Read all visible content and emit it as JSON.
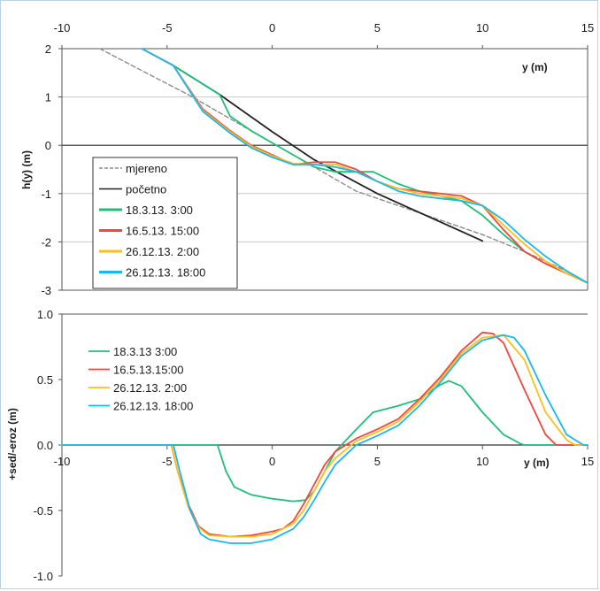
{
  "colors": {
    "mjereno": "#8c8c8c",
    "pocetno": "#222222",
    "s1": "#1fbf7a",
    "s2": "#f2473f",
    "s3": "#ffbf1a",
    "s4": "#1ab8f0"
  },
  "chart_data": [
    {
      "type": "line",
      "ylabel": "h(y)  (m)",
      "xlabel": "y (m)",
      "xlim": [
        -10,
        15
      ],
      "ylim": [
        -3,
        2
      ],
      "x_ticks": [
        "-10",
        "-5",
        "0",
        "5",
        "10",
        "15"
      ],
      "y_ticks": [
        "2",
        "1",
        "0",
        "-1",
        "-2",
        "-3"
      ],
      "legend_position": "bottom-left",
      "series": [
        {
          "name": "mjereno",
          "style": "dashed",
          "color": "#8c8c8c",
          "points": [
            [
              -8.2,
              2.0
            ],
            [
              -6,
              1.5
            ],
            [
              -4,
              1.05
            ],
            [
              -2,
              0.55
            ],
            [
              0,
              0.05
            ],
            [
              2,
              -0.45
            ],
            [
              4,
              -0.95
            ],
            [
              6,
              -1.25
            ],
            [
              8,
              -1.55
            ],
            [
              10,
              -1.85
            ],
            [
              12,
              -2.2
            ],
            [
              14,
              -2.6
            ],
            [
              15,
              -2.85
            ]
          ]
        },
        {
          "name": "početno",
          "style": "solid",
          "color": "#222222",
          "points": [
            [
              -6.2,
              2.0
            ],
            [
              -4.7,
              1.65
            ],
            [
              -2.5,
              1.05
            ],
            [
              0,
              0.28
            ],
            [
              2,
              -0.3
            ],
            [
              5,
              -1.0
            ],
            [
              10,
              -1.98
            ]
          ]
        },
        {
          "name": "18.3.13. 3:00",
          "style": "solid",
          "color": "#1fbf7a",
          "points": [
            [
              -6.2,
              2.0
            ],
            [
              -4.7,
              1.65
            ],
            [
              -2.5,
              1.05
            ],
            [
              -2,
              0.6
            ],
            [
              -1,
              0.3
            ],
            [
              0,
              0.05
            ],
            [
              1,
              -0.2
            ],
            [
              2,
              -0.45
            ],
            [
              3,
              -0.55
            ],
            [
              4,
              -0.55
            ],
            [
              4.8,
              -0.55
            ],
            [
              6,
              -0.8
            ],
            [
              7,
              -0.95
            ],
            [
              8,
              -1.05
            ],
            [
              9,
              -1.15
            ],
            [
              10,
              -1.45
            ],
            [
              11,
              -1.85
            ],
            [
              12,
              -2.2
            ],
            [
              13,
              -2.45
            ],
            [
              14,
              -2.65
            ],
            [
              15,
              -2.85
            ]
          ]
        },
        {
          "name": "16.5.13. 15:00",
          "style": "solid",
          "color": "#f2473f",
          "points": [
            [
              -6.2,
              2.0
            ],
            [
              -4.7,
              1.65
            ],
            [
              -3.3,
              0.75
            ],
            [
              -2,
              0.3
            ],
            [
              -1,
              0.0
            ],
            [
              0,
              -0.2
            ],
            [
              1,
              -0.4
            ],
            [
              2,
              -0.35
            ],
            [
              3,
              -0.35
            ],
            [
              4,
              -0.5
            ],
            [
              5,
              -0.75
            ],
            [
              6,
              -0.9
            ],
            [
              7,
              -0.95
            ],
            [
              8,
              -1.0
            ],
            [
              9,
              -1.05
            ],
            [
              10,
              -1.25
            ],
            [
              11,
              -1.75
            ],
            [
              12,
              -2.2
            ],
            [
              13,
              -2.45
            ],
            [
              14,
              -2.65
            ],
            [
              15,
              -2.85
            ]
          ]
        },
        {
          "name": "26.12.13. 2:00",
          "style": "solid",
          "color": "#ffbf1a",
          "points": [
            [
              -6.2,
              2.0
            ],
            [
              -4.7,
              1.65
            ],
            [
              -3.3,
              0.72
            ],
            [
              -2,
              0.28
            ],
            [
              -1,
              -0.02
            ],
            [
              0,
              -0.22
            ],
            [
              1,
              -0.38
            ],
            [
              2,
              -0.4
            ],
            [
              3,
              -0.4
            ],
            [
              4,
              -0.55
            ],
            [
              5,
              -0.75
            ],
            [
              6,
              -0.9
            ],
            [
              7,
              -1.0
            ],
            [
              8,
              -1.05
            ],
            [
              9,
              -1.1
            ],
            [
              10,
              -1.25
            ],
            [
              11,
              -1.65
            ],
            [
              12,
              -2.05
            ],
            [
              13,
              -2.4
            ],
            [
              14,
              -2.65
            ],
            [
              15,
              -2.85
            ]
          ]
        },
        {
          "name": "26.12.13. 18:00",
          "style": "solid",
          "color": "#1ab8f0",
          "points": [
            [
              -6.2,
              2.0
            ],
            [
              -4.7,
              1.65
            ],
            [
              -3.3,
              0.7
            ],
            [
              -2,
              0.25
            ],
            [
              -1,
              -0.05
            ],
            [
              0,
              -0.25
            ],
            [
              1,
              -0.4
            ],
            [
              2,
              -0.4
            ],
            [
              3,
              -0.45
            ],
            [
              4,
              -0.55
            ],
            [
              5,
              -0.75
            ],
            [
              6,
              -0.95
            ],
            [
              7,
              -1.05
            ],
            [
              8,
              -1.1
            ],
            [
              9,
              -1.15
            ],
            [
              10,
              -1.25
            ],
            [
              11,
              -1.55
            ],
            [
              12,
              -1.95
            ],
            [
              13,
              -2.3
            ],
            [
              14,
              -2.6
            ],
            [
              15,
              -2.85
            ]
          ]
        }
      ]
    },
    {
      "type": "line",
      "ylabel": "+sed/-eroz (m)",
      "xlabel": "y (m)",
      "xlim": [
        -10,
        15
      ],
      "ylim": [
        -1.0,
        1.0
      ],
      "x_ticks": [
        "-10",
        "-5",
        "0",
        "5",
        "10",
        "15"
      ],
      "y_ticks": [
        "1.0",
        "0.5",
        "0.0",
        "-0.5",
        "-1.0"
      ],
      "legend_position": "top-left",
      "series": [
        {
          "name": "18.3.13 3:00",
          "color": "#1fbf7a",
          "points": [
            [
              -10,
              0
            ],
            [
              -2.6,
              0
            ],
            [
              -2.2,
              -0.2
            ],
            [
              -1.8,
              -0.32
            ],
            [
              -1,
              -0.38
            ],
            [
              0,
              -0.41
            ],
            [
              1,
              -0.43
            ],
            [
              1.6,
              -0.42
            ],
            [
              2,
              -0.35
            ],
            [
              2.5,
              -0.2
            ],
            [
              3,
              -0.05
            ],
            [
              4,
              0.12
            ],
            [
              4.8,
              0.25
            ],
            [
              6,
              0.3
            ],
            [
              7,
              0.35
            ],
            [
              8,
              0.46
            ],
            [
              8.4,
              0.49
            ],
            [
              9,
              0.45
            ],
            [
              10,
              0.25
            ],
            [
              11,
              0.08
            ],
            [
              11.8,
              0.01
            ],
            [
              12,
              0
            ],
            [
              15,
              0
            ]
          ]
        },
        {
          "name": "16.5.13.15:00",
          "color": "#f2473f",
          "points": [
            [
              -10,
              0
            ],
            [
              -4.8,
              0
            ],
            [
              -4.5,
              -0.2
            ],
            [
              -4,
              -0.45
            ],
            [
              -3.5,
              -0.62
            ],
            [
              -3,
              -0.68
            ],
            [
              -2,
              -0.7
            ],
            [
              -1,
              -0.69
            ],
            [
              0,
              -0.66
            ],
            [
              0.5,
              -0.64
            ],
            [
              1,
              -0.58
            ],
            [
              1.5,
              -0.45
            ],
            [
              2,
              -0.3
            ],
            [
              2.5,
              -0.15
            ],
            [
              3,
              -0.05
            ],
            [
              4,
              0.05
            ],
            [
              5,
              0.12
            ],
            [
              6,
              0.2
            ],
            [
              7,
              0.35
            ],
            [
              8,
              0.52
            ],
            [
              9,
              0.72
            ],
            [
              10,
              0.86
            ],
            [
              10.5,
              0.85
            ],
            [
              11,
              0.78
            ],
            [
              12,
              0.42
            ],
            [
              13,
              0.08
            ],
            [
              13.5,
              0
            ],
            [
              15,
              0
            ]
          ]
        },
        {
          "name": "26.12.13. 2:00",
          "color": "#ffbf1a",
          "points": [
            [
              -10,
              0
            ],
            [
              -4.8,
              0
            ],
            [
              -4.5,
              -0.2
            ],
            [
              -4,
              -0.47
            ],
            [
              -3.5,
              -0.63
            ],
            [
              -3,
              -0.69
            ],
            [
              -2,
              -0.7
            ],
            [
              -1,
              -0.7
            ],
            [
              0,
              -0.68
            ],
            [
              1,
              -0.6
            ],
            [
              1.5,
              -0.5
            ],
            [
              2,
              -0.35
            ],
            [
              2.5,
              -0.2
            ],
            [
              3,
              -0.1
            ],
            [
              4,
              0.03
            ],
            [
              5,
              0.1
            ],
            [
              6,
              0.18
            ],
            [
              7,
              0.33
            ],
            [
              8,
              0.5
            ],
            [
              9,
              0.7
            ],
            [
              10,
              0.82
            ],
            [
              11,
              0.84
            ],
            [
              12,
              0.65
            ],
            [
              13,
              0.25
            ],
            [
              14,
              0.04
            ],
            [
              14.4,
              0
            ],
            [
              15,
              0
            ]
          ]
        },
        {
          "name": "26.12.13. 18:00",
          "color": "#1ab8f0",
          "points": [
            [
              -10,
              0
            ],
            [
              -4.7,
              0
            ],
            [
              -4.4,
              -0.2
            ],
            [
              -3.9,
              -0.5
            ],
            [
              -3.4,
              -0.68
            ],
            [
              -3,
              -0.72
            ],
            [
              -2,
              -0.75
            ],
            [
              -1,
              -0.75
            ],
            [
              0,
              -0.72
            ],
            [
              1,
              -0.64
            ],
            [
              1.5,
              -0.55
            ],
            [
              2,
              -0.42
            ],
            [
              2.5,
              -0.28
            ],
            [
              3,
              -0.15
            ],
            [
              4,
              0
            ],
            [
              5,
              0.07
            ],
            [
              6,
              0.15
            ],
            [
              7,
              0.3
            ],
            [
              8,
              0.48
            ],
            [
              9,
              0.68
            ],
            [
              10,
              0.8
            ],
            [
              11,
              0.84
            ],
            [
              11.5,
              0.82
            ],
            [
              12,
              0.72
            ],
            [
              13,
              0.38
            ],
            [
              14,
              0.08
            ],
            [
              14.8,
              0
            ],
            [
              15,
              0
            ]
          ]
        }
      ]
    }
  ]
}
